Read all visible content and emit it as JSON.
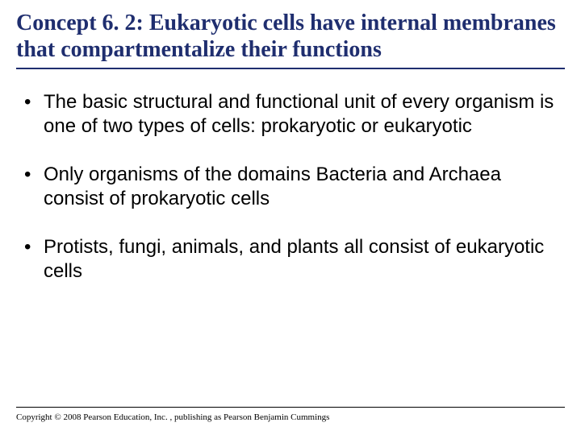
{
  "title": "Concept 6. 2: Eukaryotic cells have internal membranes that compartmentalize their functions",
  "title_color": "#1f2e6f",
  "title_fontsize": 28,
  "title_font": "Times New Roman",
  "underline_color": "#1f2e6f",
  "bullets": [
    "The basic structural and functional unit of every organism is one of two types of cells: prokaryotic or eukaryotic",
    "Only organisms of the domains Bacteria and Archaea consist of prokaryotic cells",
    "Protists, fungi, animals, and plants all consist of eukaryotic cells"
  ],
  "bullet_fontsize": 24,
  "bullet_color": "#000000",
  "bullet_font": "Arial",
  "copyright": "Copyright © 2008 Pearson Education, Inc. , publishing as Pearson Benjamin Cummings",
  "copyright_fontsize": 11,
  "background_color": "#ffffff",
  "slide_width": 720,
  "slide_height": 540
}
